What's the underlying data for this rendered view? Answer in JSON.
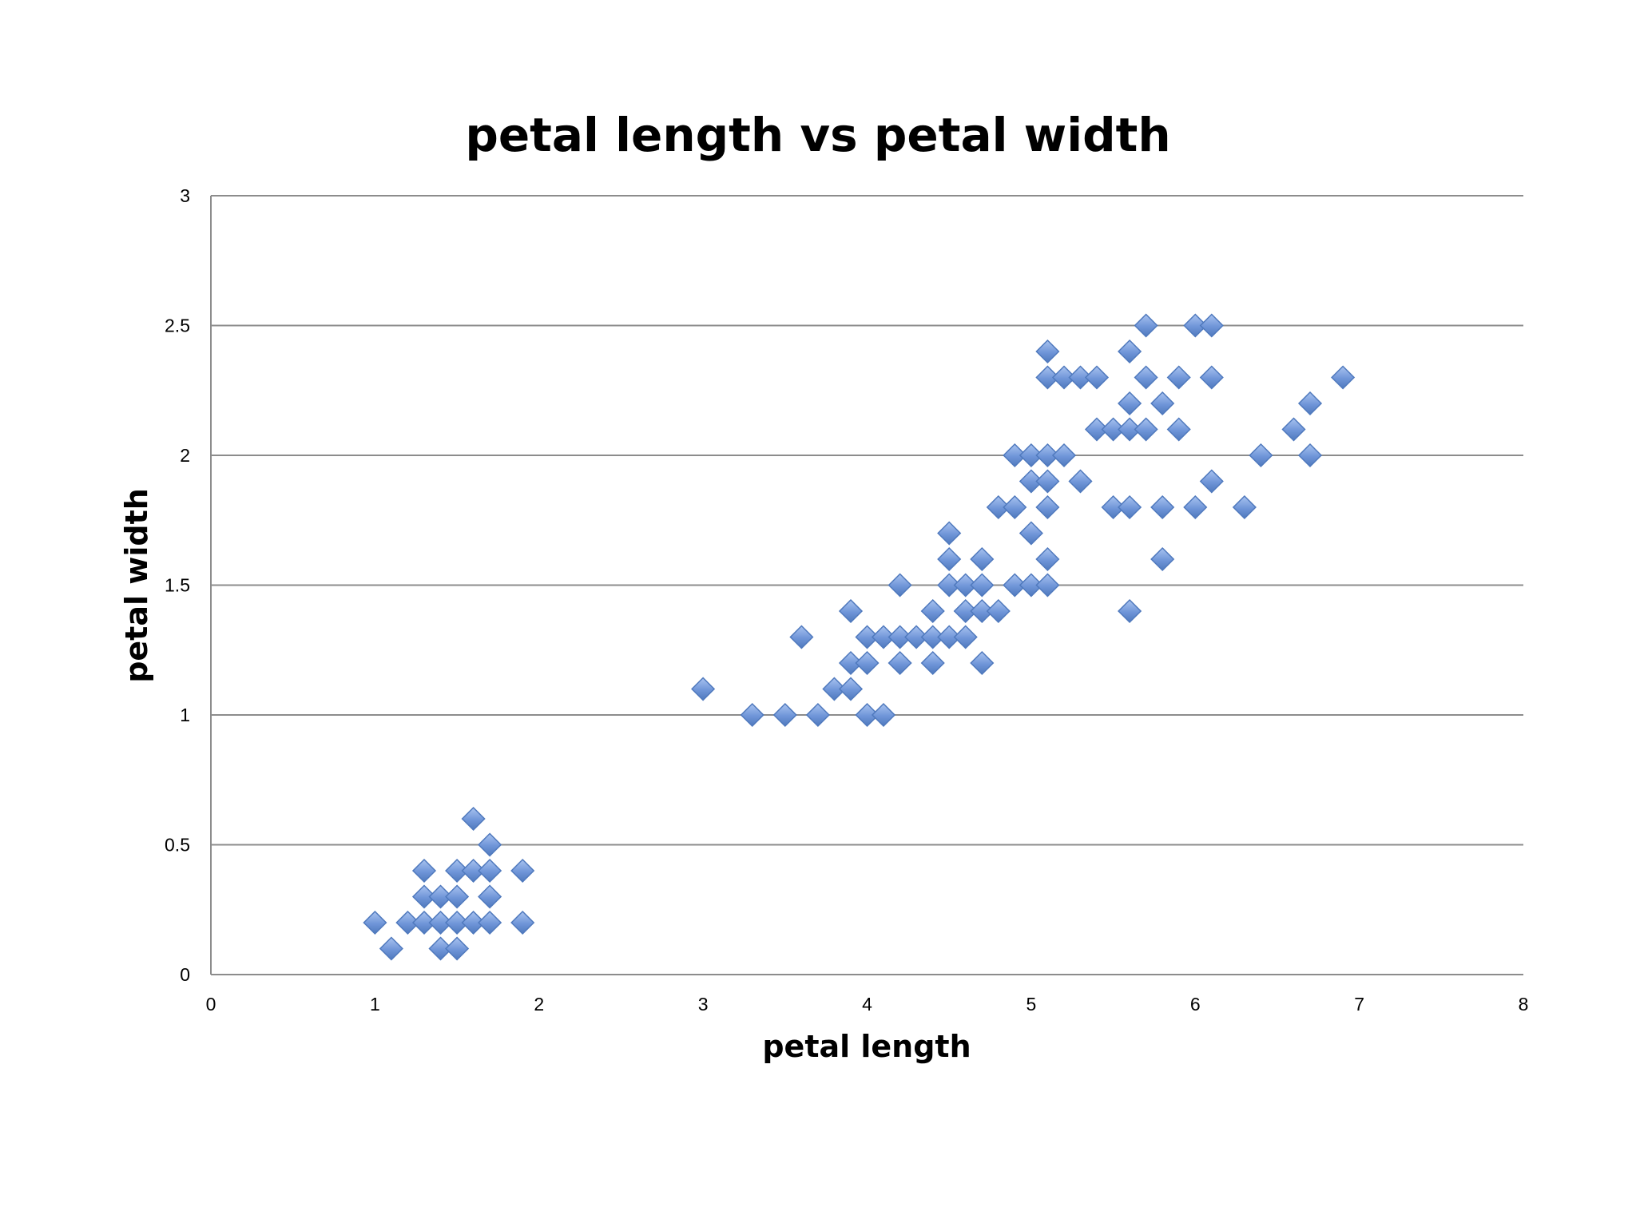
{
  "chart_data": {
    "type": "scatter",
    "title": "petal length vs petal width",
    "xlabel": "petal length",
    "ylabel": "petal width",
    "xlim": [
      0,
      8
    ],
    "ylim": [
      0,
      3
    ],
    "x_ticks": [
      "0",
      "1",
      "2",
      "3",
      "4",
      "5",
      "6",
      "7",
      "8"
    ],
    "y_ticks": [
      "0",
      "0.5",
      "1",
      "1.5",
      "2",
      "2.5",
      "3"
    ],
    "grid": true,
    "legend": "none",
    "marker": "diamond",
    "color": "#6f95d8",
    "points": [
      [
        1.0,
        0.2
      ],
      [
        1.1,
        0.1
      ],
      [
        1.2,
        0.2
      ],
      [
        1.3,
        0.2
      ],
      [
        1.3,
        0.3
      ],
      [
        1.3,
        0.4
      ],
      [
        1.4,
        0.1
      ],
      [
        1.4,
        0.2
      ],
      [
        1.4,
        0.3
      ],
      [
        1.5,
        0.1
      ],
      [
        1.5,
        0.2
      ],
      [
        1.5,
        0.3
      ],
      [
        1.5,
        0.4
      ],
      [
        1.6,
        0.2
      ],
      [
        1.6,
        0.4
      ],
      [
        1.6,
        0.6
      ],
      [
        1.7,
        0.2
      ],
      [
        1.7,
        0.3
      ],
      [
        1.7,
        0.4
      ],
      [
        1.7,
        0.5
      ],
      [
        1.9,
        0.2
      ],
      [
        1.9,
        0.4
      ],
      [
        3.0,
        1.1
      ],
      [
        3.3,
        1.0
      ],
      [
        3.5,
        1.0
      ],
      [
        3.6,
        1.3
      ],
      [
        3.7,
        1.0
      ],
      [
        3.8,
        1.1
      ],
      [
        3.9,
        1.1
      ],
      [
        3.9,
        1.2
      ],
      [
        3.9,
        1.4
      ],
      [
        4.0,
        1.0
      ],
      [
        4.0,
        1.2
      ],
      [
        4.0,
        1.3
      ],
      [
        4.1,
        1.0
      ],
      [
        4.1,
        1.3
      ],
      [
        4.2,
        1.2
      ],
      [
        4.2,
        1.3
      ],
      [
        4.2,
        1.5
      ],
      [
        4.3,
        1.3
      ],
      [
        4.4,
        1.2
      ],
      [
        4.4,
        1.3
      ],
      [
        4.4,
        1.4
      ],
      [
        4.5,
        1.3
      ],
      [
        4.5,
        1.5
      ],
      [
        4.5,
        1.6
      ],
      [
        4.5,
        1.7
      ],
      [
        4.6,
        1.3
      ],
      [
        4.6,
        1.4
      ],
      [
        4.6,
        1.5
      ],
      [
        4.7,
        1.2
      ],
      [
        4.7,
        1.4
      ],
      [
        4.7,
        1.5
      ],
      [
        4.7,
        1.6
      ],
      [
        4.8,
        1.4
      ],
      [
        4.8,
        1.8
      ],
      [
        4.9,
        1.5
      ],
      [
        4.9,
        1.8
      ],
      [
        4.9,
        2.0
      ],
      [
        5.0,
        1.5
      ],
      [
        5.0,
        1.7
      ],
      [
        5.0,
        1.9
      ],
      [
        5.0,
        2.0
      ],
      [
        5.1,
        1.5
      ],
      [
        5.1,
        1.6
      ],
      [
        5.1,
        1.8
      ],
      [
        5.1,
        1.9
      ],
      [
        5.1,
        2.0
      ],
      [
        5.1,
        2.3
      ],
      [
        5.1,
        2.4
      ],
      [
        5.2,
        2.0
      ],
      [
        5.2,
        2.3
      ],
      [
        5.3,
        1.9
      ],
      [
        5.3,
        2.3
      ],
      [
        5.4,
        2.1
      ],
      [
        5.4,
        2.3
      ],
      [
        5.5,
        1.8
      ],
      [
        5.5,
        2.1
      ],
      [
        5.6,
        1.4
      ],
      [
        5.6,
        1.8
      ],
      [
        5.6,
        2.1
      ],
      [
        5.6,
        2.2
      ],
      [
        5.6,
        2.4
      ],
      [
        5.7,
        2.1
      ],
      [
        5.7,
        2.3
      ],
      [
        5.7,
        2.5
      ],
      [
        5.8,
        1.6
      ],
      [
        5.8,
        1.8
      ],
      [
        5.8,
        2.2
      ],
      [
        5.9,
        2.1
      ],
      [
        5.9,
        2.3
      ],
      [
        6.0,
        1.8
      ],
      [
        6.0,
        2.5
      ],
      [
        6.1,
        1.9
      ],
      [
        6.1,
        2.3
      ],
      [
        6.1,
        2.5
      ],
      [
        6.3,
        1.8
      ],
      [
        6.4,
        2.0
      ],
      [
        6.6,
        2.1
      ],
      [
        6.7,
        2.0
      ],
      [
        6.7,
        2.2
      ],
      [
        6.9,
        2.3
      ]
    ]
  }
}
